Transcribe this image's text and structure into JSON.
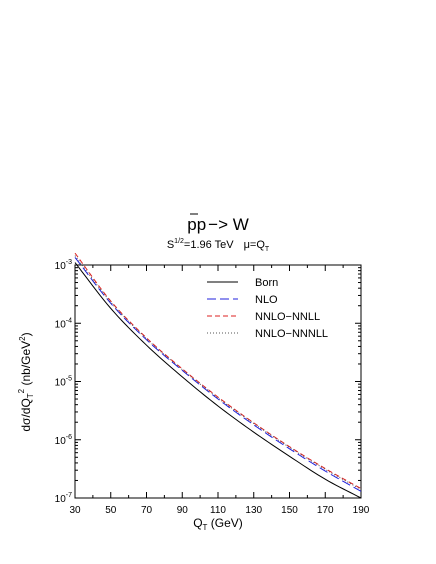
{
  "chart_data": {
    "type": "line",
    "title": "pp̄−> W",
    "title_main": "p",
    "title_bar_p": "p",
    "title_rest": "−> W",
    "subtitle": {
      "s": "S",
      "s_exp": "1/2",
      "energy": "=1.96 TeV",
      "mu": "μ=Q",
      "mu_sub": "T"
    },
    "xlabel": {
      "main": "Q",
      "sub": "T",
      "unit": " (GeV)"
    },
    "ylabel": {
      "part1": "dσ/dQ",
      "sub": "T",
      "sup": "2",
      "part2": " (nb/GeV",
      "sup2": "2",
      "part3": ")"
    },
    "xlim": [
      30,
      190
    ],
    "ylim": [
      1e-07,
      0.001
    ],
    "yscale": "log",
    "grid": false,
    "legend_position": "top-right",
    "x_ticks": [
      30,
      50,
      70,
      90,
      110,
      130,
      150,
      170,
      190
    ],
    "y_ticks": [
      {
        "value": 0.001,
        "base": "10",
        "exp": "-3"
      },
      {
        "value": 0.0001,
        "base": "10",
        "exp": "-4"
      },
      {
        "value": 1e-05,
        "base": "10",
        "exp": "-5"
      },
      {
        "value": 1e-06,
        "base": "10",
        "exp": "-6"
      },
      {
        "value": 1e-07,
        "base": "10",
        "exp": "-7"
      }
    ],
    "x": [
      30,
      50,
      70,
      90,
      110,
      130,
      150,
      170,
      190
    ],
    "series": [
      {
        "name": "Born",
        "color": "#000000",
        "style": "solid",
        "values": [
          0.0011,
          0.00018,
          4.2e-05,
          1.2e-05,
          3.8e-06,
          1.35e-06,
          5.2e-07,
          2.1e-07,
          1e-07
        ]
      },
      {
        "name": "NLO",
        "color": "#2020dd",
        "style": "long-dash",
        "values": [
          0.00135,
          0.00022,
          5.2e-05,
          1.55e-05,
          5e-06,
          1.8e-06,
          7e-07,
          2.9e-07,
          1.3e-07
        ]
      },
      {
        "name": "NNLO−NNLL",
        "color": "#dd2020",
        "style": "dash",
        "values": [
          0.0016,
          0.00024,
          5.6e-05,
          1.65e-05,
          5.4e-06,
          1.95e-06,
          7.6e-07,
          3.2e-07,
          1.45e-07
        ]
      },
      {
        "name": "NNLO−NNNLL",
        "color": "#555555",
        "style": "dot",
        "values": [
          0.00145,
          0.00023,
          5.4e-05,
          1.6e-05,
          5.2e-06,
          1.9e-06,
          7.4e-07,
          3.1e-07,
          1.4e-07
        ]
      }
    ]
  }
}
